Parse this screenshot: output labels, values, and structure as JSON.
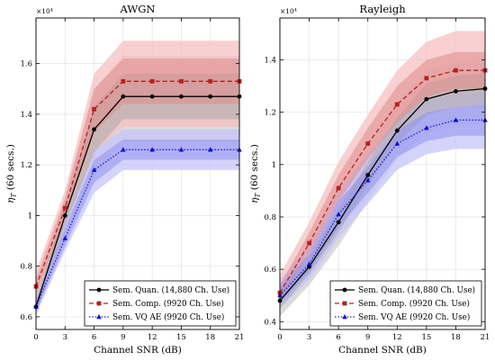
{
  "chart_data": [
    {
      "type": "line",
      "title": "AWGN",
      "xlabel": "Channel SNR (dB)",
      "ylabel": "η_T (60 secs.)",
      "y_multiplier": "×10⁴",
      "xlim": [
        0,
        21
      ],
      "ylim": [
        0.55,
        1.78
      ],
      "x_ticks": [
        0,
        3,
        6,
        9,
        12,
        15,
        18,
        21
      ],
      "y_ticks": [
        0.6,
        0.8,
        1.0,
        1.2,
        1.4,
        1.6
      ],
      "grid": true,
      "legend_position": "bottom-right",
      "x": [
        0,
        3,
        6,
        9,
        12,
        15,
        18,
        21
      ],
      "series": [
        {
          "name": "Sem. Quan. (14,880 Ch. Use)",
          "color": "#000000",
          "dash": "solid",
          "marker": "circle",
          "values": [
            0.64,
            1.0,
            1.34,
            1.47,
            1.47,
            1.47,
            1.47,
            1.47
          ],
          "band_outer": {
            "lower": [
              0.6,
              0.93,
              1.15,
              1.29,
              1.29,
              1.29,
              1.29,
              1.29
            ],
            "upper": [
              0.69,
              1.07,
              1.5,
              1.63,
              1.63,
              1.63,
              1.63,
              1.63
            ]
          },
          "band_inner": {
            "lower": [
              0.62,
              0.96,
              1.25,
              1.38,
              1.38,
              1.38,
              1.38,
              1.38
            ],
            "upper": [
              0.67,
              1.03,
              1.43,
              1.56,
              1.56,
              1.56,
              1.56,
              1.56
            ]
          }
        },
        {
          "name": "Sem. Comp. (9920 Ch. Use)",
          "color": "#b42020",
          "dash": "dashed",
          "marker": "square",
          "values": [
            0.72,
            1.03,
            1.42,
            1.53,
            1.53,
            1.53,
            1.53,
            1.53
          ],
          "band_outer": {
            "lower": [
              0.67,
              0.95,
              1.25,
              1.35,
              1.35,
              1.35,
              1.35,
              1.35
            ],
            "upper": [
              0.78,
              1.1,
              1.56,
              1.69,
              1.69,
              1.69,
              1.69,
              1.69
            ]
          },
          "band_inner": {
            "lower": [
              0.69,
              0.99,
              1.33,
              1.44,
              1.44,
              1.44,
              1.44,
              1.44
            ],
            "upper": [
              0.75,
              1.07,
              1.5,
              1.62,
              1.62,
              1.62,
              1.62,
              1.62
            ]
          }
        },
        {
          "name": "Sem. VQ AE (9920 Ch. Use)",
          "color": "#1010d0",
          "dash": "dotted",
          "marker": "triangle",
          "values": [
            0.64,
            0.91,
            1.18,
            1.26,
            1.26,
            1.26,
            1.26,
            1.26
          ],
          "band_outer": {
            "lower": [
              0.61,
              0.86,
              1.09,
              1.18,
              1.18,
              1.18,
              1.18,
              1.18
            ],
            "upper": [
              0.68,
              0.98,
              1.26,
              1.34,
              1.34,
              1.34,
              1.34,
              1.34
            ]
          },
          "band_inner": {
            "lower": [
              0.62,
              0.88,
              1.13,
              1.22,
              1.22,
              1.22,
              1.22,
              1.22
            ],
            "upper": [
              0.66,
              0.95,
              1.22,
              1.3,
              1.3,
              1.3,
              1.3,
              1.3
            ]
          }
        }
      ]
    },
    {
      "type": "line",
      "title": "Rayleigh",
      "xlabel": "Channel SNR (dB)",
      "ylabel": "η_T (60 secs.)",
      "y_multiplier": "×10⁴",
      "xlim": [
        0,
        21
      ],
      "ylim": [
        0.37,
        1.56
      ],
      "x_ticks": [
        0,
        3,
        6,
        9,
        12,
        15,
        18,
        21
      ],
      "y_ticks": [
        0.4,
        0.6,
        0.8,
        1.0,
        1.2,
        1.4
      ],
      "grid": true,
      "legend_position": "bottom-right",
      "x": [
        0,
        3,
        6,
        9,
        12,
        15,
        18,
        21
      ],
      "series": [
        {
          "name": "Sem. Quan. (14,880 Ch. Use)",
          "color": "#000000",
          "dash": "solid",
          "marker": "circle",
          "values": [
            0.48,
            0.61,
            0.78,
            0.96,
            1.13,
            1.25,
            1.28,
            1.29
          ],
          "band_outer": {
            "lower": [
              0.42,
              0.54,
              0.69,
              0.86,
              1.02,
              1.12,
              1.15,
              1.16
            ],
            "upper": [
              0.54,
              0.69,
              0.87,
              1.06,
              1.24,
              1.36,
              1.39,
              1.4
            ]
          },
          "band_inner": {
            "lower": [
              0.45,
              0.58,
              0.74,
              0.92,
              1.08,
              1.19,
              1.22,
              1.23
            ],
            "upper": [
              0.51,
              0.65,
              0.83,
              1.01,
              1.18,
              1.31,
              1.34,
              1.35
            ]
          }
        },
        {
          "name": "Sem. Comp. (9920 Ch. Use)",
          "color": "#b42020",
          "dash": "dashed",
          "marker": "square",
          "values": [
            0.51,
            0.7,
            0.91,
            1.08,
            1.23,
            1.33,
            1.36,
            1.36
          ],
          "band_outer": {
            "lower": [
              0.46,
              0.62,
              0.8,
              0.96,
              1.1,
              1.19,
              1.22,
              1.22
            ],
            "upper": [
              0.58,
              0.78,
              1.01,
              1.19,
              1.36,
              1.47,
              1.51,
              1.51
            ]
          },
          "band_inner": {
            "lower": [
              0.48,
              0.66,
              0.86,
              1.02,
              1.16,
              1.26,
              1.29,
              1.29
            ],
            "upper": [
              0.54,
              0.74,
              0.96,
              1.14,
              1.3,
              1.4,
              1.43,
              1.43
            ]
          }
        },
        {
          "name": "Sem. VQ AE (9920 Ch. Use)",
          "color": "#1010d0",
          "dash": "dotted",
          "marker": "triangle",
          "values": [
            0.5,
            0.62,
            0.81,
            0.94,
            1.08,
            1.14,
            1.17,
            1.17
          ],
          "band_outer": {
            "lower": [
              0.45,
              0.56,
              0.72,
              0.85,
              0.98,
              1.04,
              1.06,
              1.06
            ],
            "upper": [
              0.56,
              0.69,
              0.9,
              1.04,
              1.18,
              1.25,
              1.27,
              1.28
            ]
          },
          "band_inner": {
            "lower": [
              0.47,
              0.59,
              0.76,
              0.89,
              1.03,
              1.09,
              1.11,
              1.11
            ],
            "upper": [
              0.53,
              0.66,
              0.86,
              0.99,
              1.13,
              1.2,
              1.22,
              1.23
            ]
          }
        }
      ]
    }
  ]
}
